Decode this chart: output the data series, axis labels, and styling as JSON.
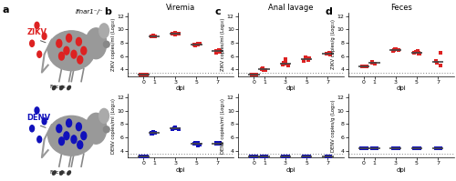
{
  "panel_titles_top": [
    "Viremia",
    "Anal lavage",
    "Feces"
  ],
  "panel_labels": [
    "b",
    "c",
    "d"
  ],
  "ylim": [
    3,
    12.5
  ],
  "yticks": [
    4,
    6,
    8,
    10,
    12
  ],
  "x_labels": [
    "0",
    "1",
    "3",
    "5",
    "7"
  ],
  "x_positions": [
    0,
    1,
    3,
    5,
    7
  ],
  "xlabel": "dpi",
  "ylabel_zikv_b": "ZIKV copies/ml (Log₁₀)",
  "ylabel_zikv_c": "ZIKV copies/ml (Log₁₀)",
  "ylabel_zikv_d": "ZIKV copies/g (Log₁₀)",
  "ylabel_denv_b": "DENV copies/ml (Log₁₀)",
  "ylabel_denv_c": "DENV copies/ml (Log₁₀)",
  "ylabel_denv_d": "DENV copies/g (Log₁₀)",
  "dotted_line_y": 3.5,
  "red_color": "#dd2222",
  "blue_color": "#1111bb",
  "dot_size": 6,
  "median_line_color": "#444444",
  "median_lw": 1.2,
  "zikv_viremia": {
    "0": [
      3.2,
      3.2,
      3.2,
      3.2,
      3.2,
      3.2,
      3.2,
      3.2,
      3.2,
      3.2,
      3.2,
      3.2
    ],
    "1": [
      9.0,
      8.9,
      9.0,
      8.95,
      9.05
    ],
    "3": [
      9.3,
      9.4,
      9.35,
      9.3,
      9.25,
      9.45
    ],
    "5": [
      7.7,
      7.8,
      7.75,
      7.6,
      7.85
    ],
    "7": [
      6.8,
      6.5,
      6.7,
      6.6,
      6.9
    ]
  },
  "zikv_anal": {
    "0": [
      3.2,
      3.2,
      3.2,
      3.2,
      3.2,
      3.2
    ],
    "1": [
      4.0,
      3.9,
      4.1,
      4.2,
      3.85
    ],
    "3": [
      4.6,
      4.85,
      5.0,
      4.75,
      4.95,
      5.5
    ],
    "5": [
      5.3,
      5.65,
      5.5,
      5.75,
      5.4
    ],
    "7": [
      6.3,
      6.4,
      6.35,
      6.2,
      6.45
    ]
  },
  "zikv_feces": {
    "0": [
      4.5,
      4.5,
      4.5,
      4.5,
      4.5
    ],
    "1": [
      5.0,
      4.85,
      5.1
    ],
    "3": [
      6.9,
      7.05,
      6.85,
      6.7,
      7.1
    ],
    "5": [
      6.5,
      6.3,
      6.55,
      6.65,
      6.75,
      6.35
    ],
    "7": [
      5.0,
      5.2,
      6.5,
      4.55
    ]
  },
  "denv_viremia": {
    "0": [
      3.2,
      3.2,
      3.2,
      3.2,
      3.2,
      3.2,
      3.2,
      3.2,
      3.2,
      3.2
    ],
    "1": [
      6.6,
      6.75,
      6.65,
      6.55,
      6.85
    ],
    "3": [
      7.3,
      7.5,
      7.4,
      7.2,
      7.35,
      7.45
    ],
    "5": [
      5.1,
      4.95,
      4.85,
      5.2,
      5.15
    ],
    "7": [
      5.1,
      5.2,
      5.0,
      5.15,
      5.05
    ]
  },
  "denv_anal": {
    "0": [
      3.2,
      3.2,
      3.2,
      3.2,
      3.2,
      3.2,
      3.2,
      3.2
    ],
    "1": [
      3.2,
      3.2,
      3.2,
      3.2,
      3.2,
      3.2
    ],
    "3": [
      3.2,
      3.2,
      3.2,
      3.2,
      3.2,
      3.2
    ],
    "5": [
      3.2,
      3.2,
      3.2,
      3.2,
      3.2,
      3.2
    ],
    "7": [
      3.2,
      3.2,
      3.2,
      3.2,
      3.2,
      3.2
    ]
  },
  "denv_feces": {
    "0": [
      4.35,
      4.35,
      4.35,
      4.35,
      4.35,
      4.35,
      4.35,
      4.35,
      4.35
    ],
    "1": [
      4.35,
      4.35,
      4.35,
      4.35,
      4.35,
      4.35
    ],
    "3": [
      4.35,
      4.35,
      4.35,
      4.35,
      4.35,
      4.35
    ],
    "5": [
      4.35,
      4.35,
      4.35,
      4.35,
      4.35,
      4.35
    ],
    "7": [
      4.35,
      4.35,
      4.35,
      4.35,
      4.35,
      4.35
    ]
  }
}
